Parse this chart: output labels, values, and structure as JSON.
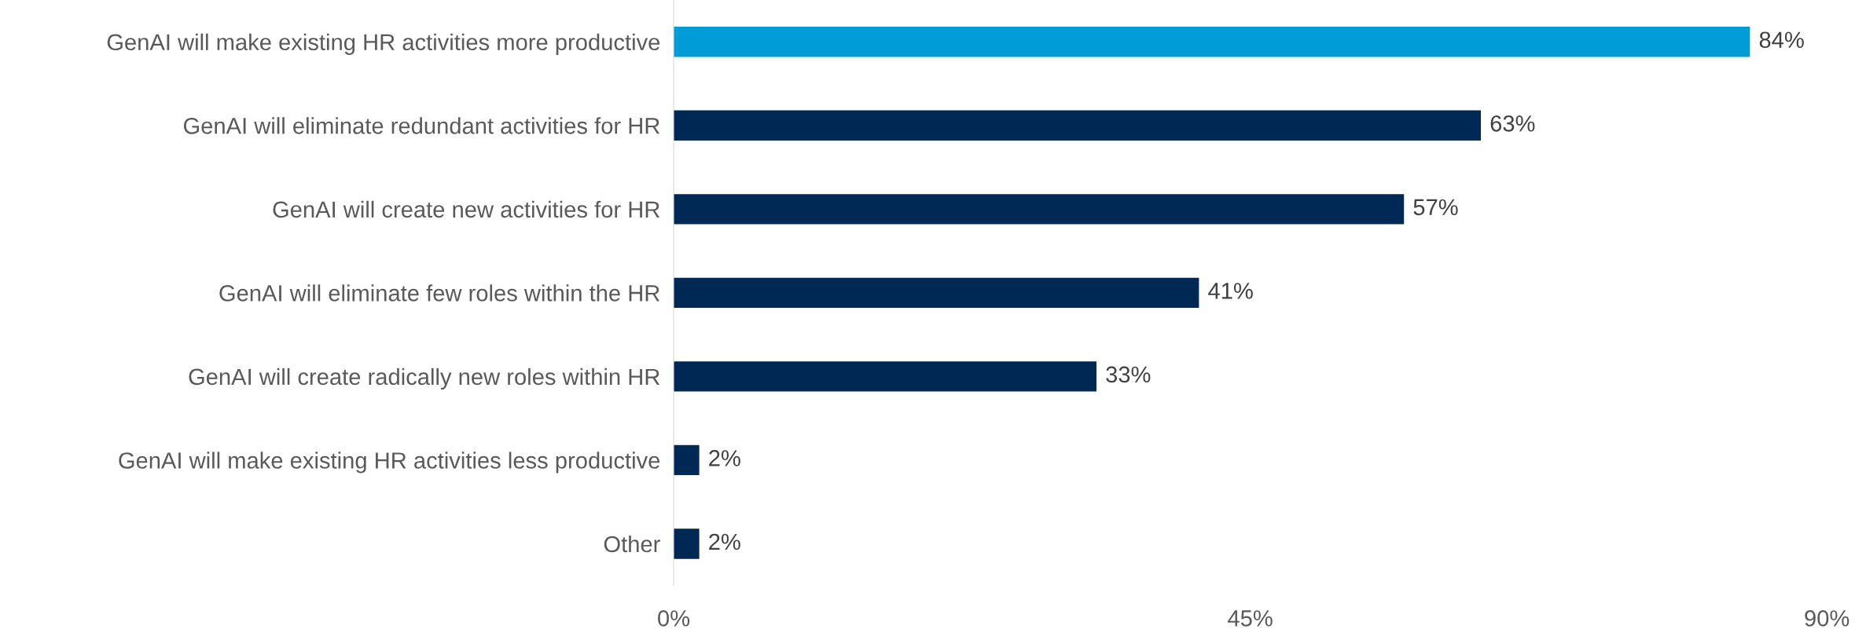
{
  "chart_data": {
    "type": "bar",
    "orientation": "horizontal",
    "categories": [
      "GenAI will make existing HR activities more productive",
      "GenAI will eliminate redundant activities for HR",
      "GenAI will create new activities for HR",
      "GenAI will eliminate few roles within the HR",
      "GenAI will create radically new roles within HR",
      "GenAI will make existing HR activities less productive",
      "Other"
    ],
    "values": [
      84,
      63,
      57,
      41,
      33,
      2,
      2
    ],
    "colors": [
      "#009cd8",
      "#002855",
      "#002855",
      "#002855",
      "#002855",
      "#002855",
      "#002855"
    ],
    "value_labels": [
      "84%",
      "63%",
      "57%",
      "41%",
      "33%",
      "2%",
      "2%"
    ],
    "xlim": [
      0,
      90
    ],
    "xticks": [
      {
        "value": 0,
        "label": "0%"
      },
      {
        "value": 45,
        "label": "45%"
      },
      {
        "value": 90,
        "label": "90%"
      }
    ],
    "grid": false,
    "legend": false
  }
}
